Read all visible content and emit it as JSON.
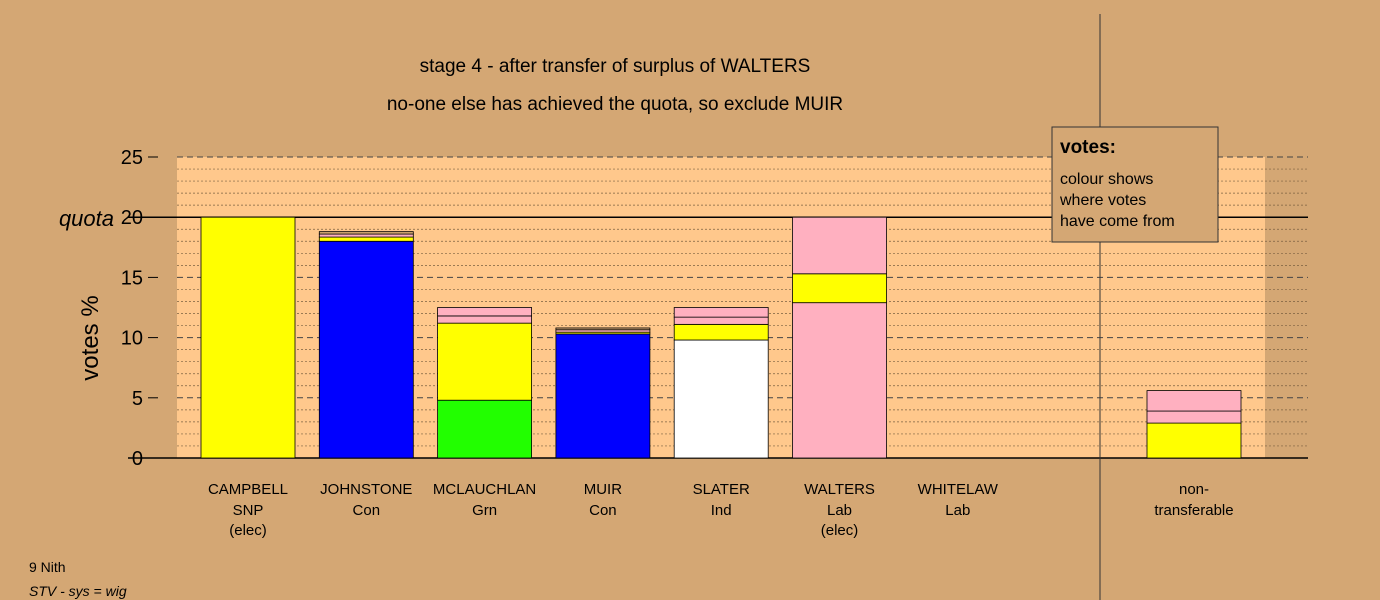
{
  "chart_data": {
    "type": "bar",
    "stacked": true,
    "title": "stage 4 - after transfer of surplus of WALTERS",
    "subtitle": "no-one else has achieved the quota, so exclude MUIR",
    "ylabel": "votes %",
    "ylim": [
      0,
      25
    ],
    "yticks": [
      "0",
      "5",
      "10",
      "15",
      "20",
      "25"
    ],
    "quota": {
      "value": 20,
      "label": "quota"
    },
    "grid": "dashed every 5, dotted minor",
    "legend": {
      "placement": "top-right",
      "title": "votes:",
      "lines": [
        "colour shows",
        "where votes",
        "have come from"
      ]
    },
    "candidates": [
      {
        "name": "CAMPBELL",
        "party": "SNP",
        "status": "(elec)",
        "segments": [
          {
            "color": "#ffff00",
            "value": 20.0
          }
        ]
      },
      {
        "name": "JOHNSTONE",
        "party": "Con",
        "status": "",
        "segments": [
          {
            "color": "#0000ff",
            "value": 18.0
          },
          {
            "color": "#ffff00",
            "value": 0.35
          },
          {
            "color": "#ffb0c0",
            "value": 0.25
          },
          {
            "color": "#d4a774",
            "value": 0.2
          }
        ]
      },
      {
        "name": "MCLAUCHLAN",
        "party": "Grn",
        "status": "",
        "segments": [
          {
            "color": "#22ff00",
            "value": 4.8
          },
          {
            "color": "#ffff00",
            "value": 6.4
          },
          {
            "color": "#ffb0c0",
            "value": 0.6
          },
          {
            "color": "#ffb0c0",
            "value": 0.7
          }
        ]
      },
      {
        "name": "MUIR",
        "party": "Con",
        "status": "",
        "segments": [
          {
            "color": "#0000ff",
            "value": 10.3
          },
          {
            "color": "#ffff00",
            "value": 0.15
          },
          {
            "color": "#ffb0c0",
            "value": 0.2
          },
          {
            "color": "#d4a774",
            "value": 0.15
          }
        ]
      },
      {
        "name": "SLATER",
        "party": "Ind",
        "status": "",
        "segments": [
          {
            "color": "#ffffff",
            "value": 9.8
          },
          {
            "color": "#ffff00",
            "value": 1.3
          },
          {
            "color": "#ffb0c0",
            "value": 0.6
          },
          {
            "color": "#ffb0c0",
            "value": 0.8
          }
        ]
      },
      {
        "name": "WALTERS",
        "party": "Lab",
        "status": "(elec)",
        "segments": [
          {
            "color": "#ffb0c0",
            "value": 12.9
          },
          {
            "color": "#ffff00",
            "value": 2.4
          },
          {
            "color": "#ffb0c0",
            "value": 4.7
          }
        ]
      },
      {
        "name": "WHITELAW",
        "party": "Lab",
        "status": "",
        "segments": []
      }
    ],
    "nontransferable": {
      "label1": "non-",
      "label2": "transferable",
      "segments": [
        {
          "color": "#ffff00",
          "value": 2.9
        },
        {
          "color": "#ffb0c0",
          "value": 1.0
        },
        {
          "color": "#ffb0c0",
          "value": 1.7
        }
      ]
    }
  },
  "footer": {
    "ward": "9 Nith",
    "system": "STV - sys = wig"
  }
}
